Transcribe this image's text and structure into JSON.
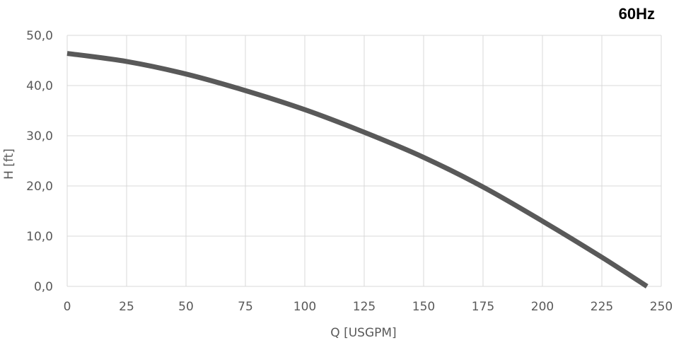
{
  "badge": "60Hz",
  "chart_data": {
    "type": "line",
    "title": "",
    "xlabel": "Q [USGPM]",
    "ylabel": "H [ft]",
    "xlim": [
      0,
      250
    ],
    "ylim": [
      0,
      50
    ],
    "x_ticks": [
      0,
      25,
      50,
      75,
      100,
      125,
      150,
      175,
      200,
      225,
      250
    ],
    "x_tick_labels": [
      "0",
      "25",
      "50",
      "75",
      "100",
      "125",
      "150",
      "175",
      "200",
      "225",
      "250"
    ],
    "y_ticks": [
      0,
      10,
      20,
      30,
      40,
      50
    ],
    "y_tick_labels": [
      "0,0",
      "10,0",
      "20,0",
      "30,0",
      "40,0",
      "50,0"
    ],
    "grid": true,
    "series": [
      {
        "color": "#595959",
        "x": [
          0,
          25,
          50,
          75,
          100,
          125,
          150,
          175,
          200,
          225,
          244
        ],
        "y": [
          46.4,
          44.8,
          42.3,
          39.0,
          35.2,
          30.7,
          25.7,
          19.8,
          13.0,
          5.8,
          0
        ]
      }
    ]
  }
}
